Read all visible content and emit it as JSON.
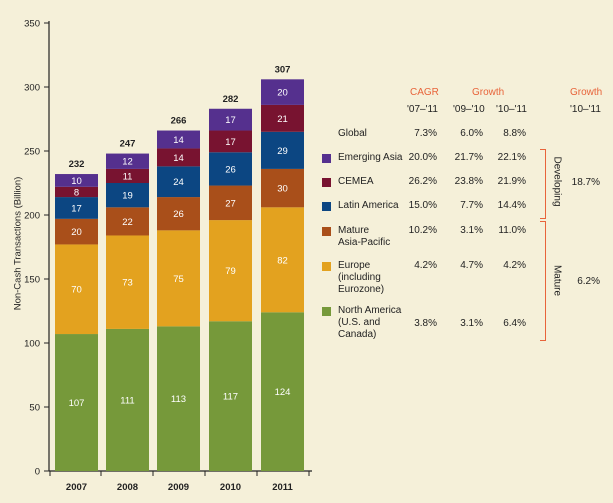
{
  "chart_data": {
    "type": "bar",
    "stacked": true,
    "title": "",
    "ylabel": "Non-Cash Transactions (Billion)",
    "xlabel": "",
    "ylim": [
      0,
      350
    ],
    "yticks": [
      0,
      50,
      100,
      150,
      200,
      250,
      300,
      350
    ],
    "categories": [
      "2007",
      "2008",
      "2009",
      "2010",
      "2011"
    ],
    "totals": [
      232,
      247,
      266,
      282,
      307
    ],
    "series": [
      {
        "name": "North America (U.S. and Canada)",
        "color": "#76993a",
        "values": [
          107,
          111,
          113,
          117,
          124
        ]
      },
      {
        "name": "Europe (including Eurozone)",
        "color": "#e3a21f",
        "values": [
          70,
          73,
          75,
          79,
          82
        ]
      },
      {
        "name": "Mature Asia-Pacific",
        "color": "#a94f1a",
        "values": [
          20,
          22,
          26,
          27,
          30
        ]
      },
      {
        "name": "Latin America",
        "color": "#0c4682",
        "values": [
          17,
          19,
          24,
          26,
          29
        ]
      },
      {
        "name": "CEMEA",
        "color": "#781330",
        "values": [
          8,
          11,
          14,
          17,
          21
        ]
      },
      {
        "name": "Emerging Asia",
        "color": "#55308e",
        "values": [
          10,
          12,
          14,
          17,
          20
        ]
      }
    ]
  },
  "table": {
    "headers": {
      "cagr": "CAGR",
      "growth": "Growth",
      "growth2": "Growth",
      "p1": "'07–'11",
      "p2": "'09–'10",
      "p3": "'10–'11",
      "p4": "'10–'11"
    },
    "rows": [
      {
        "label": "Global",
        "cagr": "7.3%",
        "g1": "6.0%",
        "g2": "8.8%"
      },
      {
        "label": "Emerging Asia",
        "cagr": "20.0%",
        "g1": "21.7%",
        "g2": "22.1%"
      },
      {
        "label": "CEMEA",
        "cagr": "26.2%",
        "g1": "23.8%",
        "g2": "21.9%"
      },
      {
        "label": "Latin America",
        "cagr": "15.0%",
        "g1": "7.7%",
        "g2": "14.4%"
      },
      {
        "label": "Mature\nAsia-Pacific",
        "cagr": "10.2%",
        "g1": "3.1%",
        "g2": "11.0%"
      },
      {
        "label": "Europe\n(including\nEurozone)",
        "cagr": "4.2%",
        "g1": "4.7%",
        "g2": "4.2%"
      },
      {
        "label": "North America\n(U.S. and\nCanada)",
        "cagr": "3.8%",
        "g1": "3.1%",
        "g2": "6.4%"
      }
    ],
    "groups": [
      {
        "label": "Developing",
        "growth": "18.7%"
      },
      {
        "label": "Mature",
        "growth": "6.2%"
      }
    ]
  }
}
